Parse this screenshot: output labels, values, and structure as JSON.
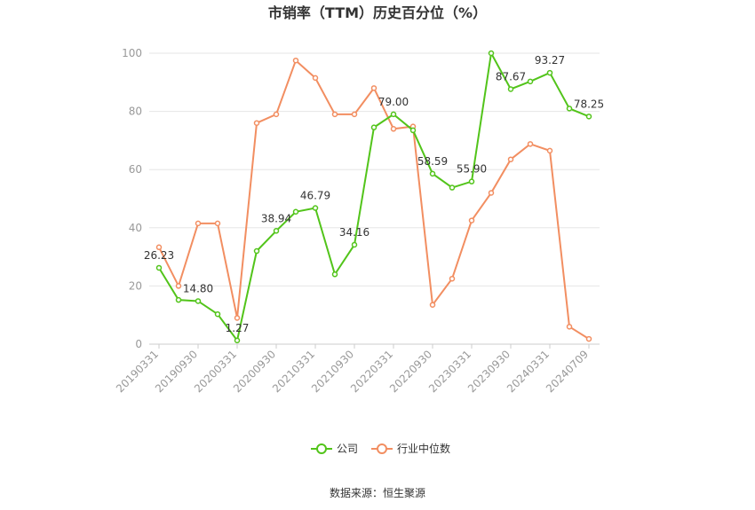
{
  "chart_data": {
    "type": "line",
    "title": "市销率（TTM）历史百分位（%）",
    "source": "数据来源：恒生聚源",
    "ylim": [
      0,
      100
    ],
    "yticks": [
      "0",
      "20",
      "40",
      "60",
      "80",
      "100"
    ],
    "grid": true,
    "legend_position": "bottom",
    "x_tick_labels": [
      "20190331",
      "20190930",
      "20200331",
      "20200930",
      "20210331",
      "20210930",
      "20220331",
      "20220930",
      "20230331",
      "20230930",
      "20240331",
      "20240709"
    ],
    "series": [
      {
        "name": "公司",
        "color": "#52c41a",
        "values": [
          26.23,
          15.2,
          14.8,
          10.3,
          1.27,
          32.0,
          38.94,
          45.5,
          46.79,
          24.0,
          34.16,
          74.5,
          79.0,
          73.5,
          58.59,
          53.8,
          55.9,
          100.0,
          87.67,
          90.3,
          93.27,
          81.0,
          78.25
        ],
        "labels": [
          "26.23",
          "",
          "14.80",
          "",
          "1.27",
          "",
          "38.94",
          "",
          "46.79",
          "",
          "34.16",
          "",
          "79.00",
          "",
          "58.59",
          "",
          "55.90",
          "",
          "87.67",
          "",
          "93.27",
          "",
          "78.25"
        ]
      },
      {
        "name": "行业中位数",
        "color": "#f28e61",
        "values": [
          33.3,
          20.0,
          41.5,
          41.5,
          9.0,
          76.0,
          79.0,
          97.5,
          91.5,
          79.0,
          79.0,
          88.0,
          74.0,
          74.8,
          13.5,
          22.5,
          42.5,
          52.0,
          63.5,
          68.8,
          66.5,
          6.0,
          1.8
        ]
      }
    ]
  }
}
